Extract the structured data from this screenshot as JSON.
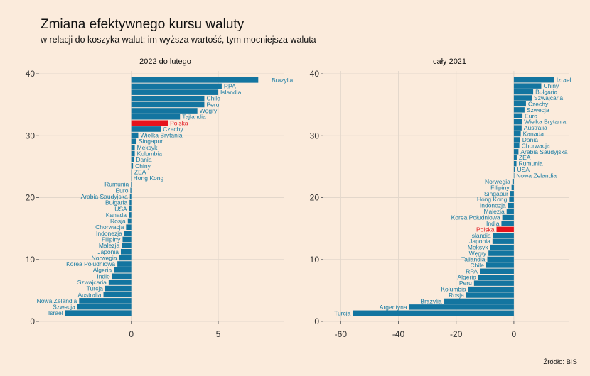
{
  "title": "Zmiana efektywnego kursu waluty",
  "subtitle": "w relacji do koszyka walut; im wyższa wartość, tym mocniejsza waluta",
  "source": "Źródło: BIS",
  "colors": {
    "bar": "#1375a0",
    "highlight": "#e6131b",
    "label": "#1a7ca3",
    "grid": "#e3d7cb",
    "background": "#fbebdc"
  },
  "chart_data": [
    {
      "type": "bar",
      "orientation": "horizontal",
      "title": "2022 do lutego",
      "highlight": "Polska",
      "xlim": [
        -5.3,
        8.8
      ],
      "xticks": [
        0,
        5
      ],
      "yticks": [
        0,
        10,
        20,
        30,
        40
      ],
      "grid": true,
      "categories": [
        "Brazylia",
        "RPA",
        "Islandia",
        "Chile",
        "Peru",
        "Węgry",
        "Tajlandia",
        "Polska",
        "Czechy",
        "Wielka Brytania",
        "Singapur",
        "Meksyk",
        "Kolumbia",
        "Dania",
        "Chiny",
        "ZEA",
        "Hong Kong",
        "Rumunia",
        "Euro",
        "Arabia Saudyjska",
        "Bułgaria",
        "USA",
        "Kanada",
        "Rosja",
        "Chorwacja",
        "Indonezja",
        "Filipiny",
        "Malezja",
        "Japonia",
        "Norwegia",
        "Korea Południowa",
        "Algeria",
        "Indie",
        "Szwajcaria",
        "Turcja",
        "Australia",
        "Nowa Zelandia",
        "Szwecja",
        "Israel"
      ],
      "values": [
        7.3,
        5.2,
        5.0,
        4.2,
        4.2,
        3.8,
        2.8,
        2.1,
        1.7,
        0.4,
        0.3,
        0.2,
        0.2,
        0.15,
        0.1,
        0.05,
        0.0,
        -0.02,
        -0.05,
        -0.08,
        -0.1,
        -0.12,
        -0.15,
        -0.2,
        -0.3,
        -0.4,
        -0.5,
        -0.55,
        -0.6,
        -0.7,
        -0.8,
        -1.0,
        -1.1,
        -1.3,
        -1.5,
        -1.6,
        -3.0,
        -3.1,
        -3.8
      ]
    },
    {
      "type": "bar",
      "orientation": "horizontal",
      "title": "cały 2021",
      "highlight": "Polska",
      "xlim": [
        -66,
        19
      ],
      "xticks": [
        -60,
        -40,
        -20,
        0
      ],
      "yticks": [
        0,
        10,
        20,
        30,
        40
      ],
      "grid": true,
      "categories": [
        "Izrael",
        "Chiny",
        "Bułgaria",
        "Szwajcaria",
        "Czechy",
        "Szwecja",
        "Euro",
        "Wielka Brytania",
        "Australia",
        "Kanada",
        "Dania",
        "Chorwacja",
        "Arabia Saudyjska",
        "ZEA",
        "Rumunia",
        "USA",
        "Nowa Zelandia",
        "Norwegia",
        "Filipiny",
        "Singapur",
        "Hong Kong",
        "Indonezja",
        "Malezja",
        "Korea Południowa",
        "India",
        "Polska",
        "Islandia",
        "Japonia",
        "Meksyk",
        "Węgry",
        "Tajlandia",
        "Chile",
        "RPA",
        "Algeria",
        "Peru",
        "Kolumbia",
        "Rosja",
        "Brazylia",
        "Argentyna",
        "Turcja"
      ],
      "values": [
        14,
        9.5,
        6.7,
        6.2,
        4.2,
        3.7,
        3.0,
        2.8,
        2.7,
        2.4,
        2.2,
        1.9,
        1.6,
        1.0,
        0.9,
        0.4,
        0.1,
        -0.5,
        -0.8,
        -1.2,
        -1.6,
        -2.0,
        -2.5,
        -4.0,
        -4.3,
        -6.0,
        -7.2,
        -7.4,
        -8.2,
        -8.8,
        -9.2,
        -9.6,
        -11.8,
        -12.3,
        -13.8,
        -15.8,
        -16.5,
        -24.2,
        -36.3,
        -55.8
      ]
    }
  ]
}
